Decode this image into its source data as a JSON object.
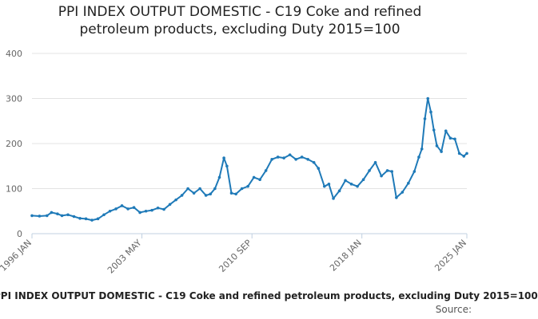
{
  "chart_data": {
    "type": "line",
    "title_line1": "PPI INDEX OUTPUT DOMESTIC - C19 Coke and refined",
    "title_line2": "petroleum products, excluding Duty 2015=100",
    "xlabel": "",
    "ylabel": "",
    "ylim": [
      0,
      400
    ],
    "yticks": [
      0,
      100,
      200,
      300,
      400
    ],
    "xticks": [
      "1996 JAN",
      "2003 MAY",
      "2010 SEP",
      "2018 JAN",
      "2025 JAN"
    ],
    "xtick_years": [
      1996.0,
      2003.33,
      2010.67,
      2018.0,
      2025.0
    ],
    "xlim": [
      1996.0,
      2025.0
    ],
    "grid": true,
    "legend_position": "bottom",
    "series": [
      {
        "name": "PPI INDEX OUTPUT DOMESTIC - C19 Coke and refined petroleum products, excluding Duty 2015=100",
        "color": "#1f7ab8",
        "x": [
          1996.0,
          1996.5,
          1997.0,
          1997.3,
          1997.7,
          1998.0,
          1998.4,
          1998.8,
          1999.2,
          1999.6,
          2000.0,
          2000.4,
          2000.8,
          2001.2,
          2001.6,
          2002.0,
          2002.4,
          2002.8,
          2003.2,
          2003.6,
          2004.0,
          2004.4,
          2004.8,
          2005.2,
          2005.6,
          2006.0,
          2006.4,
          2006.8,
          2007.2,
          2007.6,
          2007.9,
          2008.2,
          2008.5,
          2008.8,
          2009.0,
          2009.3,
          2009.6,
          2010.0,
          2010.4,
          2010.8,
          2011.2,
          2011.6,
          2012.0,
          2012.4,
          2012.8,
          2013.2,
          2013.6,
          2014.0,
          2014.4,
          2014.8,
          2015.1,
          2015.5,
          2015.8,
          2016.1,
          2016.5,
          2016.9,
          2017.3,
          2017.7,
          2018.1,
          2018.5,
          2018.9,
          2019.3,
          2019.7,
          2020.0,
          2020.3,
          2020.7,
          2021.1,
          2021.5,
          2021.8,
          2022.0,
          2022.2,
          2022.4,
          2022.6,
          2022.8,
          2023.0,
          2023.3,
          2023.6,
          2023.9,
          2024.2,
          2024.5,
          2024.8,
          2025.0
        ],
        "values": [
          40,
          39,
          40,
          47,
          44,
          40,
          42,
          38,
          34,
          33,
          30,
          33,
          42,
          50,
          55,
          62,
          55,
          58,
          47,
          50,
          52,
          57,
          54,
          65,
          75,
          85,
          100,
          90,
          100,
          85,
          88,
          100,
          125,
          168,
          150,
          90,
          88,
          100,
          105,
          125,
          120,
          140,
          165,
          170,
          168,
          175,
          165,
          170,
          165,
          158,
          145,
          105,
          110,
          78,
          95,
          118,
          110,
          105,
          120,
          140,
          158,
          128,
          140,
          138,
          80,
          92,
          112,
          138,
          170,
          188,
          255,
          300,
          270,
          230,
          195,
          182,
          228,
          212,
          210,
          178,
          172,
          178
        ]
      }
    ]
  },
  "source_label": "Source:"
}
